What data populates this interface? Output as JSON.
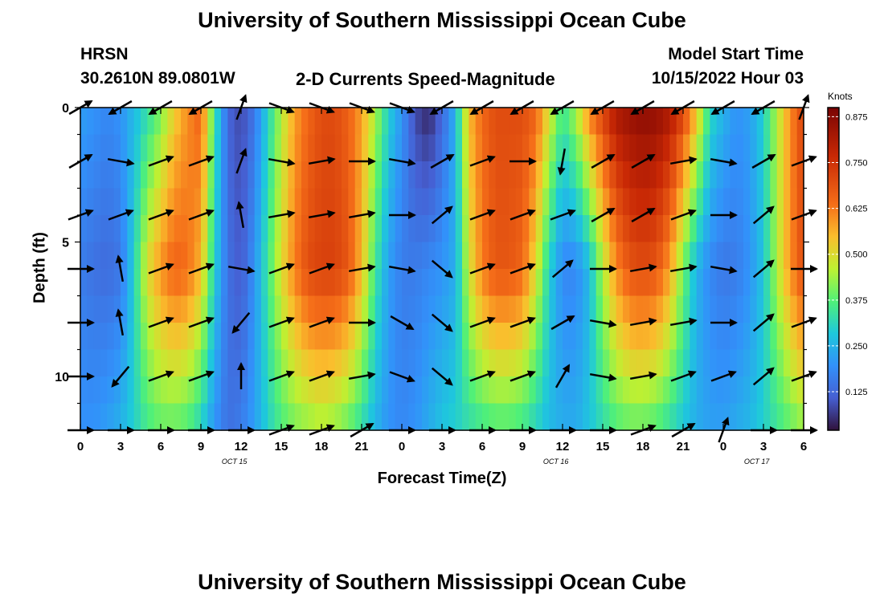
{
  "chart_data": {
    "type": "heatmap",
    "title": "University of Southern Mississippi Ocean Cube",
    "repeat_title": "University of Southern Mississippi Ocean Cube",
    "station": "HRSN",
    "location": "30.2610N  89.0801W",
    "subtitle": "2-D Currents Speed-Magnitude",
    "model_start_label": "Model Start Time",
    "model_start_value": "10/15/2022 Hour 03",
    "xlabel": "Forecast Time(Z)",
    "ylabel": "Depth (ft)",
    "x_range_hours": [
      0,
      54
    ],
    "y_range_ft": [
      0,
      12
    ],
    "x_ticks": [
      "0",
      "3",
      "6",
      "9",
      "12",
      "15",
      "18",
      "21",
      "0",
      "3",
      "6",
      "9",
      "12",
      "15",
      "18",
      "21",
      "0",
      "3",
      "6"
    ],
    "y_ticks": [
      {
        "value": 0,
        "label": "0"
      },
      {
        "value": 5,
        "label": "5"
      },
      {
        "value": 10,
        "label": "10"
      }
    ],
    "date_labels": [
      {
        "hour": 11.5,
        "label": "OCT 15"
      },
      {
        "hour": 35.5,
        "label": "OCT 16"
      },
      {
        "hour": 50.5,
        "label": "OCT 17"
      }
    ],
    "colorbar": {
      "label": "Knots",
      "ticks": [
        "0.875",
        "0.750",
        "0.625",
        "0.500",
        "0.375",
        "0.250",
        "0.125"
      ],
      "tick_values": [
        0.875,
        0.75,
        0.625,
        0.5,
        0.375,
        0.25,
        0.125
      ],
      "range": [
        0.02,
        0.9
      ]
    },
    "speed_profile_surface": [
      [
        0,
        0.22
      ],
      [
        1,
        0.2
      ],
      [
        2,
        0.18
      ],
      [
        3,
        0.2
      ],
      [
        4,
        0.26
      ],
      [
        5,
        0.32
      ],
      [
        6,
        0.4
      ],
      [
        7,
        0.52
      ],
      [
        8,
        0.6
      ],
      [
        9,
        0.66
      ],
      [
        10,
        0.35
      ],
      [
        11,
        0.12
      ],
      [
        12,
        0.08
      ],
      [
        13,
        0.15
      ],
      [
        14,
        0.3
      ],
      [
        15,
        0.45
      ],
      [
        16,
        0.58
      ],
      [
        17,
        0.65
      ],
      [
        18,
        0.7
      ],
      [
        19,
        0.7
      ],
      [
        20,
        0.66
      ],
      [
        21,
        0.58
      ],
      [
        22,
        0.45
      ],
      [
        23,
        0.3
      ],
      [
        24,
        0.2
      ],
      [
        25,
        0.08
      ],
      [
        26,
        0.04
      ],
      [
        27,
        0.12
      ],
      [
        28,
        0.25
      ],
      [
        29,
        0.55
      ],
      [
        30,
        0.65
      ],
      [
        31,
        0.7
      ],
      [
        32,
        0.7
      ],
      [
        33,
        0.7
      ],
      [
        34,
        0.66
      ],
      [
        35,
        0.5
      ],
      [
        36,
        0.35
      ],
      [
        37,
        0.45
      ],
      [
        38,
        0.62
      ],
      [
        39,
        0.72
      ],
      [
        40,
        0.82
      ],
      [
        41,
        0.85
      ],
      [
        42,
        0.87
      ],
      [
        43,
        0.86
      ],
      [
        44,
        0.82
      ],
      [
        45,
        0.72
      ],
      [
        46,
        0.55
      ],
      [
        47,
        0.32
      ],
      [
        48,
        0.25
      ],
      [
        49,
        0.2
      ],
      [
        50,
        0.22
      ],
      [
        51,
        0.3
      ],
      [
        52,
        0.45
      ],
      [
        53,
        0.6
      ],
      [
        54,
        0.72
      ]
    ],
    "speed_profile_core": [
      [
        0,
        0.16
      ],
      [
        1,
        0.14
      ],
      [
        2,
        0.13
      ],
      [
        3,
        0.15
      ],
      [
        4,
        0.3
      ],
      [
        5,
        0.5
      ],
      [
        6,
        0.6
      ],
      [
        7,
        0.66
      ],
      [
        8,
        0.64
      ],
      [
        9,
        0.55
      ],
      [
        10,
        0.3
      ],
      [
        11,
        0.14
      ],
      [
        12,
        0.1
      ],
      [
        13,
        0.2
      ],
      [
        14,
        0.35
      ],
      [
        15,
        0.5
      ],
      [
        16,
        0.62
      ],
      [
        17,
        0.7
      ],
      [
        18,
        0.72
      ],
      [
        19,
        0.72
      ],
      [
        20,
        0.68
      ],
      [
        21,
        0.55
      ],
      [
        22,
        0.35
      ],
      [
        23,
        0.22
      ],
      [
        24,
        0.16
      ],
      [
        25,
        0.16
      ],
      [
        26,
        0.18
      ],
      [
        27,
        0.2
      ],
      [
        28,
        0.24
      ],
      [
        29,
        0.48
      ],
      [
        30,
        0.62
      ],
      [
        31,
        0.68
      ],
      [
        32,
        0.68
      ],
      [
        33,
        0.65
      ],
      [
        34,
        0.5
      ],
      [
        35,
        0.3
      ],
      [
        36,
        0.18
      ],
      [
        37,
        0.18
      ],
      [
        38,
        0.26
      ],
      [
        39,
        0.45
      ],
      [
        40,
        0.6
      ],
      [
        41,
        0.68
      ],
      [
        42,
        0.7
      ],
      [
        43,
        0.68
      ],
      [
        44,
        0.58
      ],
      [
        45,
        0.4
      ],
      [
        46,
        0.25
      ],
      [
        47,
        0.18
      ],
      [
        48,
        0.15
      ],
      [
        49,
        0.16
      ],
      [
        50,
        0.2
      ],
      [
        51,
        0.28
      ],
      [
        52,
        0.45
      ],
      [
        53,
        0.6
      ],
      [
        54,
        0.7
      ]
    ],
    "speed_profile_bottom": [
      [
        0,
        0.2
      ],
      [
        1,
        0.2
      ],
      [
        2,
        0.22
      ],
      [
        3,
        0.25
      ],
      [
        4,
        0.3
      ],
      [
        5,
        0.35
      ],
      [
        6,
        0.38
      ],
      [
        7,
        0.38
      ],
      [
        8,
        0.36
      ],
      [
        9,
        0.3
      ],
      [
        10,
        0.2
      ],
      [
        11,
        0.14
      ],
      [
        12,
        0.16
      ],
      [
        13,
        0.22
      ],
      [
        14,
        0.3
      ],
      [
        15,
        0.36
      ],
      [
        16,
        0.4
      ],
      [
        17,
        0.42
      ],
      [
        18,
        0.44
      ],
      [
        19,
        0.42
      ],
      [
        20,
        0.38
      ],
      [
        21,
        0.32
      ],
      [
        22,
        0.25
      ],
      [
        23,
        0.2
      ],
      [
        24,
        0.18
      ],
      [
        25,
        0.2
      ],
      [
        26,
        0.24
      ],
      [
        27,
        0.28
      ],
      [
        28,
        0.3
      ],
      [
        29,
        0.32
      ],
      [
        30,
        0.34
      ],
      [
        31,
        0.36
      ],
      [
        32,
        0.36
      ],
      [
        33,
        0.34
      ],
      [
        34,
        0.3
      ],
      [
        35,
        0.26
      ],
      [
        36,
        0.24
      ],
      [
        37,
        0.24
      ],
      [
        38,
        0.28
      ],
      [
        39,
        0.32
      ],
      [
        40,
        0.36
      ],
      [
        41,
        0.38
      ],
      [
        42,
        0.38
      ],
      [
        43,
        0.36
      ],
      [
        44,
        0.32
      ],
      [
        45,
        0.28
      ],
      [
        46,
        0.24
      ],
      [
        47,
        0.22
      ],
      [
        48,
        0.22
      ],
      [
        49,
        0.24
      ],
      [
        50,
        0.26
      ],
      [
        51,
        0.3
      ],
      [
        52,
        0.34
      ],
      [
        53,
        0.38
      ],
      [
        54,
        0.42
      ]
    ],
    "vectors": {
      "depths_ft": [
        0,
        2,
        4,
        6,
        8,
        10,
        12
      ],
      "hours": [
        0,
        3,
        6,
        9,
        12,
        15,
        18,
        21,
        24,
        27,
        30,
        33,
        36,
        39,
        42,
        45,
        48,
        51,
        54
      ],
      "angles_deg": [
        [
          30,
          -150,
          -150,
          -150,
          70,
          -20,
          -20,
          -20,
          -20,
          -150,
          -150,
          -150,
          -150,
          -150,
          -150,
          -150,
          -150,
          -150,
          70
        ],
        [
          30,
          -10,
          20,
          20,
          70,
          -10,
          10,
          0,
          -10,
          30,
          20,
          0,
          -100,
          30,
          30,
          10,
          -10,
          30,
          20
        ],
        [
          20,
          20,
          20,
          20,
          100,
          10,
          10,
          10,
          0,
          40,
          20,
          20,
          20,
          30,
          30,
          20,
          0,
          40,
          20
        ],
        [
          0,
          100,
          20,
          20,
          -10,
          20,
          20,
          10,
          -10,
          -40,
          20,
          20,
          40,
          0,
          10,
          10,
          -10,
          40,
          0
        ],
        [
          0,
          100,
          20,
          20,
          -130,
          20,
          20,
          0,
          -30,
          -40,
          20,
          20,
          30,
          -10,
          10,
          10,
          0,
          40,
          20
        ],
        [
          0,
          -130,
          20,
          20,
          90,
          20,
          20,
          10,
          -20,
          -40,
          20,
          20,
          60,
          -10,
          10,
          20,
          20,
          40,
          20
        ],
        [
          0,
          0,
          0,
          0,
          0,
          20,
          20,
          30,
          0,
          0,
          0,
          0,
          0,
          0,
          20,
          30,
          70,
          0,
          0
        ]
      ]
    }
  }
}
